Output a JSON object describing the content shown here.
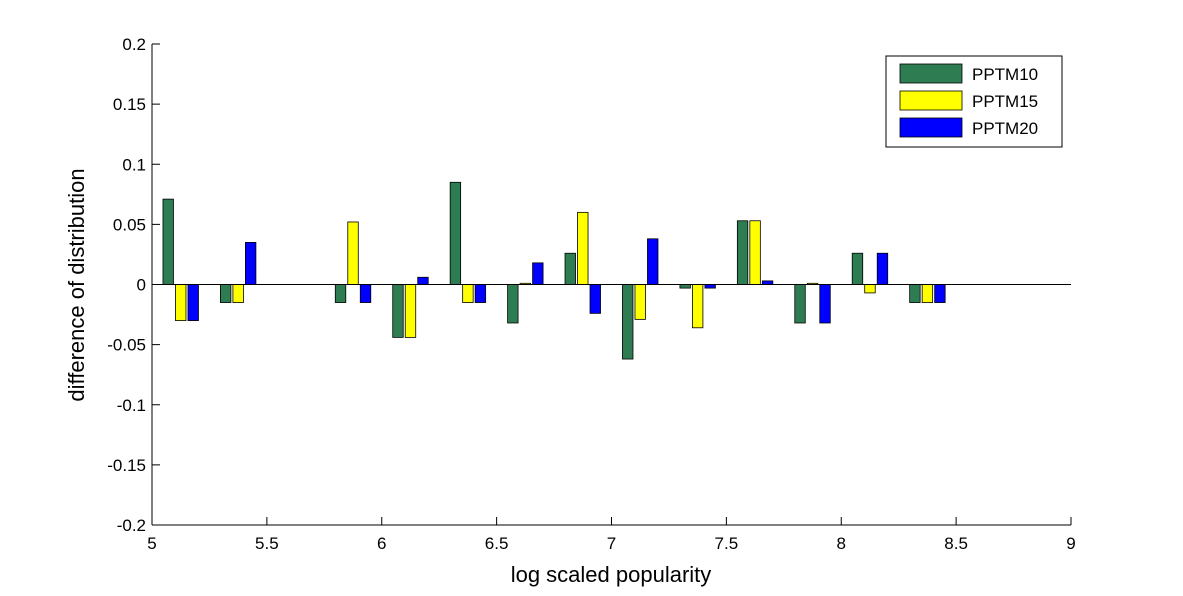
{
  "chart_data": {
    "type": "bar",
    "xlabel": "log scaled popularity",
    "ylabel": "difference of distribution",
    "xlim": [
      5,
      9
    ],
    "ylim": [
      -0.2,
      0.2
    ],
    "xticks": [
      5,
      5.5,
      6,
      6.5,
      7,
      7.5,
      8,
      8.5,
      9
    ],
    "xtick_labels": [
      "5",
      "5.5",
      "6",
      "6.5",
      "7",
      "7.5",
      "8",
      "8.5",
      "9"
    ],
    "yticks": [
      -0.2,
      -0.15,
      -0.1,
      -0.05,
      0,
      0.05,
      0.1,
      0.15,
      0.2
    ],
    "ytick_labels": [
      "-0.2",
      "-0.15",
      "-0.1",
      "-0.05",
      "0",
      "0.05",
      "0.1",
      "0.15",
      "0.2"
    ],
    "grid": false,
    "legend_position": "top-right",
    "x": [
      5.125,
      5.375,
      5.875,
      6.125,
      6.375,
      6.625,
      6.875,
      7.125,
      7.375,
      7.625,
      7.875,
      8.125,
      8.375
    ],
    "series": [
      {
        "name": "PPTM10",
        "color": "#2e7d52",
        "values": [
          0.071,
          -0.015,
          -0.015,
          -0.044,
          0.085,
          -0.032,
          0.026,
          -0.062,
          -0.003,
          0.053,
          -0.032,
          0.026,
          -0.015
        ]
      },
      {
        "name": "PPTM15",
        "color": "#ffff00",
        "values": [
          -0.03,
          -0.015,
          0.052,
          -0.044,
          -0.015,
          0.001,
          0.06,
          -0.029,
          -0.036,
          0.053,
          0.001,
          -0.007,
          -0.015
        ]
      },
      {
        "name": "PPTM20",
        "color": "#0000ff",
        "values": [
          -0.03,
          0.035,
          -0.015,
          0.006,
          -0.015,
          0.018,
          -0.024,
          0.038,
          -0.003,
          0.003,
          -0.032,
          0.026,
          -0.015
        ]
      }
    ]
  }
}
